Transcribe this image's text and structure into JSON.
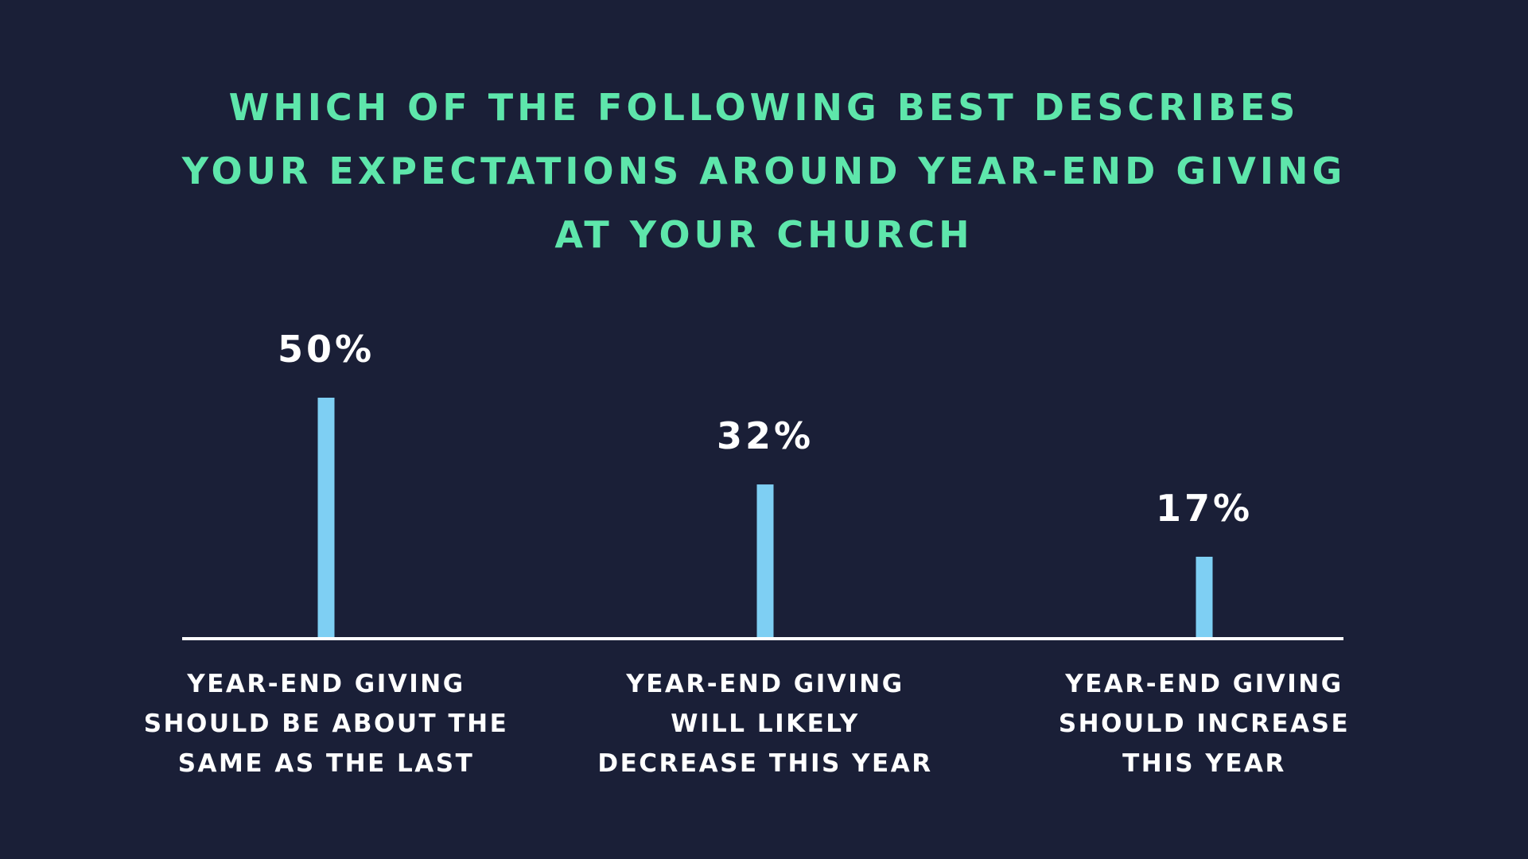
{
  "chart_data": {
    "type": "bar",
    "title_lines": [
      "WHICH OF THE FOLLOWING BEST DESCRIBES",
      "YOUR EXPECTATIONS AROUND YEAR-END GIVING",
      "AT YOUR CHURCH"
    ],
    "categories": [
      [
        "YEAR-END GIVING",
        "SHOULD BE ABOUT THE",
        "SAME AS THE LAST"
      ],
      [
        "YEAR-END GIVING",
        "WILL LIKELY",
        "DECREASE THIS YEAR"
      ],
      [
        "YEAR-END GIVING",
        "SHOULD INCREASE",
        "THIS YEAR"
      ]
    ],
    "values": [
      50,
      32,
      17
    ],
    "data_labels": [
      "50%",
      "32%",
      "17%"
    ],
    "ylim": [
      0,
      50
    ],
    "grid": false,
    "colors": {
      "background": "#1a1f37",
      "title": "#5ee6ab",
      "bar": "#7ecff3",
      "baseline": "#ffffff",
      "labels": "#ffffff"
    }
  }
}
